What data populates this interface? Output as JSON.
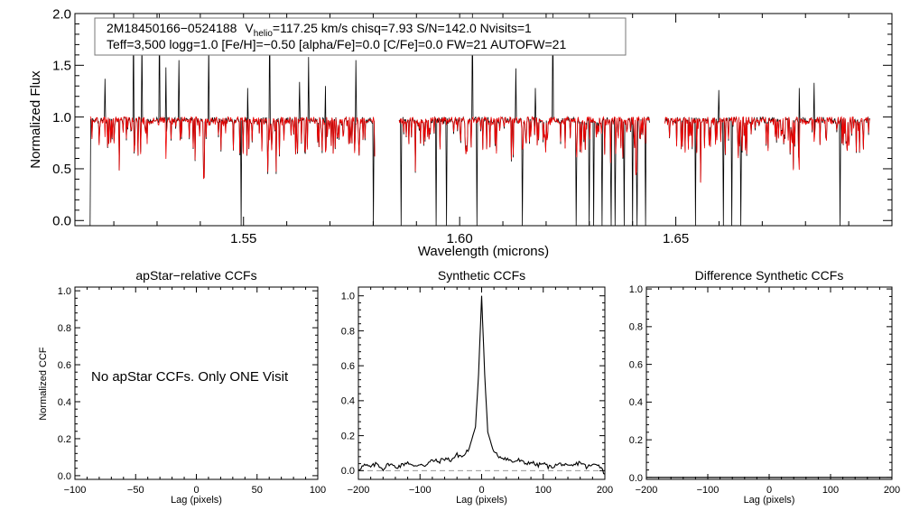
{
  "chart_data": [
    {
      "type": "line",
      "panel": "spectrum",
      "xlabel": "Wavelength (microns)",
      "ylabel": "Normalized Flux",
      "xlim": [
        1.511,
        1.7
      ],
      "ylim": [
        -0.05,
        2.0
      ],
      "xticks": [
        1.55,
        1.6,
        1.65
      ],
      "xtick_labels": [
        "1.55",
        "1.60",
        "1.65"
      ],
      "yticks": [
        0.0,
        0.5,
        1.0,
        1.5,
        2.0
      ],
      "ytick_labels": [
        "0.0",
        "0.5",
        "1.0",
        "1.5",
        "2.0"
      ],
      "info_box": {
        "line1_id": "2M18450166−0524188",
        "line1_v": "V",
        "line1_sub": "helio",
        "line1_rest": "=117.25 km/s  chisq=7.93  S/N=142.0  Nvisits=1",
        "line2": "Teff=3,500 logg=1.0 [Fe/H]=−0.50 [alpha/Fe]=0.0 [C/Fe]=0.0 FW=21 AUTOFW=21"
      },
      "chip_ranges": [
        [
          1.5145,
          1.5805
        ],
        [
          1.586,
          1.644
        ],
        [
          1.6475,
          1.695
        ]
      ],
      "baseline": 0.97,
      "spikes": [
        1.518,
        1.5245,
        1.5265,
        1.5305,
        1.532,
        1.535,
        1.542,
        1.551,
        1.556,
        1.563,
        1.565,
        1.569,
        1.576,
        1.5945,
        1.603,
        1.613,
        1.6175,
        1.6215,
        1.627,
        1.635,
        1.6455,
        1.66,
        1.6785,
        1.682
      ],
      "spike_heights": [
        1.37,
        2.0,
        1.78,
        2.0,
        1.48,
        1.55,
        1.72,
        1.28,
        2.0,
        1.34,
        1.58,
        1.3,
        1.55,
        1.43,
        2.0,
        1.47,
        1.28,
        2.0,
        1.69,
        1.3,
        1.33,
        1.26,
        1.28,
        1.33
      ],
      "dips": [
        1.5145,
        1.5495,
        1.58,
        1.5865,
        1.5945,
        1.597,
        1.604,
        1.6145,
        1.627,
        1.63,
        1.631,
        1.633,
        1.635,
        1.636,
        1.638,
        1.64,
        1.641,
        1.643,
        1.6545,
        1.661,
        1.663,
        1.665,
        1.688
      ],
      "series": [
        {
          "name": "observed",
          "color": "#000000"
        },
        {
          "name": "model",
          "color": "#ee0000"
        }
      ]
    },
    {
      "type": "line",
      "panel": "apstar",
      "title": "apStar−relative CCFs",
      "xlabel": "Lag (pixels)",
      "ylabel": "Normalized CCF",
      "xlim": [
        -100,
        100
      ],
      "ylim": [
        -0.02,
        1.02
      ],
      "xticks": [
        -100,
        -50,
        0,
        50,
        100
      ],
      "xtick_labels": [
        "−100",
        "−50",
        "0",
        "50",
        "100"
      ],
      "yticks": [
        0.0,
        0.2,
        0.4,
        0.6,
        0.8,
        1.0
      ],
      "ytick_labels": [
        "0.0",
        "0.2",
        "0.4",
        "0.6",
        "0.8",
        "1.0"
      ],
      "annotation": "No apStar CCFs.  Only ONE Visit",
      "series": []
    },
    {
      "type": "line",
      "panel": "synthetic",
      "title": "Synthetic CCFs",
      "xlabel": "Lag (pixels)",
      "ylabel": "",
      "xlim": [
        -200,
        200
      ],
      "ylim": [
        -0.05,
        1.05
      ],
      "xticks": [
        -200,
        -100,
        0,
        100,
        200
      ],
      "xtick_labels": [
        "−200",
        "−100",
        "0",
        "100",
        "200"
      ],
      "yticks": [
        0.0,
        0.2,
        0.4,
        0.6,
        0.8,
        1.0
      ],
      "ytick_labels": [
        "0.0",
        "0.2",
        "0.4",
        "0.6",
        "0.8",
        "1.0"
      ],
      "zero_line": 0.0,
      "peak": {
        "x": 0,
        "y": 1.0
      },
      "series": [
        {
          "name": "ccf",
          "x": [
            -200,
            -190,
            -180,
            -170,
            -160,
            -150,
            -140,
            -130,
            -120,
            -110,
            -100,
            -90,
            -80,
            -70,
            -60,
            -50,
            -40,
            -30,
            -20,
            -10,
            -5,
            0,
            5,
            10,
            20,
            30,
            40,
            50,
            60,
            70,
            80,
            90,
            100,
            110,
            120,
            130,
            140,
            150,
            160,
            170,
            180,
            190,
            200
          ],
          "y": [
            0.01,
            0.03,
            0.02,
            0.04,
            0.01,
            0.04,
            0.02,
            0.03,
            0.05,
            0.02,
            0.04,
            0.03,
            0.06,
            0.05,
            0.07,
            0.06,
            0.09,
            0.08,
            0.13,
            0.25,
            0.55,
            1.0,
            0.55,
            0.22,
            0.1,
            0.08,
            0.07,
            0.05,
            0.06,
            0.04,
            0.05,
            0.03,
            0.04,
            0.02,
            0.03,
            0.04,
            0.02,
            0.03,
            0.05,
            0.02,
            0.03,
            0.04,
            -0.02
          ]
        }
      ]
    },
    {
      "type": "line",
      "panel": "difference",
      "title": "Difference Synthetic CCFs",
      "xlabel": "Lag (pixels)",
      "ylabel": "",
      "xlim": [
        -200,
        200
      ],
      "ylim": [
        -0.01,
        1.01
      ],
      "xticks": [
        -200,
        -100,
        0,
        100,
        200
      ],
      "xtick_labels": [
        "−200",
        "−100",
        "0",
        "100",
        "200"
      ],
      "yticks": [
        0.0,
        0.2,
        0.4,
        0.6,
        0.8,
        1.0
      ],
      "ytick_labels": [
        "0.0",
        "0.2",
        "0.4",
        "0.6",
        "0.8",
        "1.0"
      ],
      "series": [
        {
          "name": "difference",
          "x": [
            -200,
            200
          ],
          "y": [
            0.0,
            0.0
          ]
        }
      ]
    }
  ]
}
